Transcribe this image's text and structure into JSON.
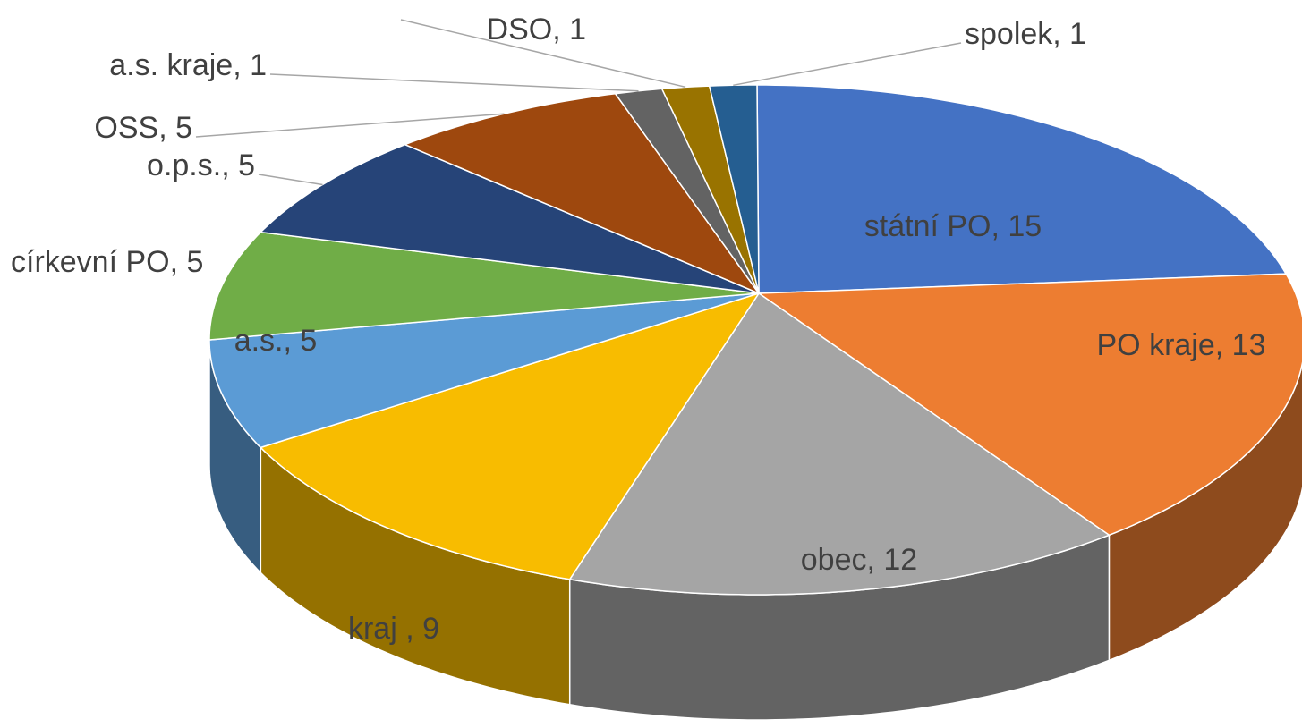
{
  "chart_data": {
    "type": "pie3d",
    "values": [
      15,
      13,
      12,
      9,
      5,
      5,
      5,
      5,
      1,
      1,
      1
    ],
    "value_labels": [
      "státní PO, 15",
      "PO kraje, 13",
      "obec, 12",
      "kraj , 9",
      "a.s., 5",
      "církevní PO, 5",
      "o.p.s., 5",
      "OSS, 5",
      "a.s. kraje, 1",
      "DSO, 1",
      "spolek, 1"
    ],
    "colors": [
      "#4472c4",
      "#ed7d31",
      "#a5a5a5",
      "#f8bc00",
      "#5b9bd5",
      "#70ad47",
      "#264478",
      "#9e480e",
      "#636363",
      "#997300",
      "#255e91"
    ]
  }
}
